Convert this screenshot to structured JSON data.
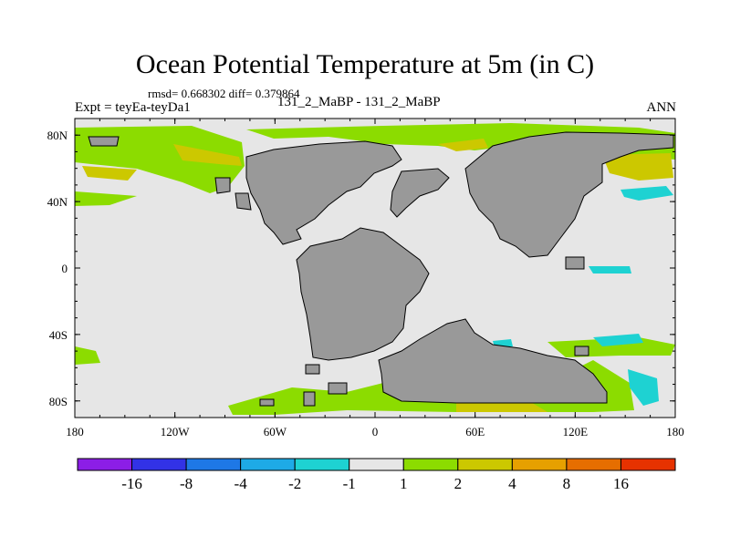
{
  "title": "Ocean Potential Temperature at 5m (in C)",
  "stats": "rmsd= 0.668302 diff= 0.379864",
  "experiment": "Expt = teyEa-teyDa1",
  "periods": "131_2_MaBP - 131_2_MaBP",
  "season": "ANN",
  "map": {
    "lon_range": [
      -180,
      180
    ],
    "lat_range": [
      -90,
      90
    ],
    "x_ticks": [
      {
        "lon": -180,
        "label": "180"
      },
      {
        "lon": -120,
        "label": "120W"
      },
      {
        "lon": -60,
        "label": "60W"
      },
      {
        "lon": 0,
        "label": "0"
      },
      {
        "lon": 60,
        "label": "60E"
      },
      {
        "lon": 120,
        "label": "120E"
      },
      {
        "lon": 180,
        "label": "180"
      }
    ],
    "y_ticks": [
      {
        "lat": 80,
        "label": "80N"
      },
      {
        "lat": 40,
        "label": "40N"
      },
      {
        "lat": 0,
        "label": "0"
      },
      {
        "lat": -40,
        "label": "40S"
      },
      {
        "lat": -80,
        "label": "80S"
      }
    ],
    "colors": {
      "ocean_neutral": "#e6e6e6",
      "land": "#999999",
      "pos_1_2": "#8cdc00",
      "pos_2_4": "#ccc800",
      "neg_m2_m1": "#1ed2d2"
    }
  },
  "colorbar": {
    "colors": [
      "#8c1ee6",
      "#3232e6",
      "#1e78e6",
      "#1eaae6",
      "#1ed2d2",
      "#e6e6e6",
      "#8cdc00",
      "#ccc800",
      "#e6a000",
      "#e66e00",
      "#e63200"
    ],
    "labels": [
      "-16",
      "-8",
      "-4",
      "-2",
      "-1",
      "1",
      "2",
      "4",
      "8",
      "16"
    ]
  }
}
